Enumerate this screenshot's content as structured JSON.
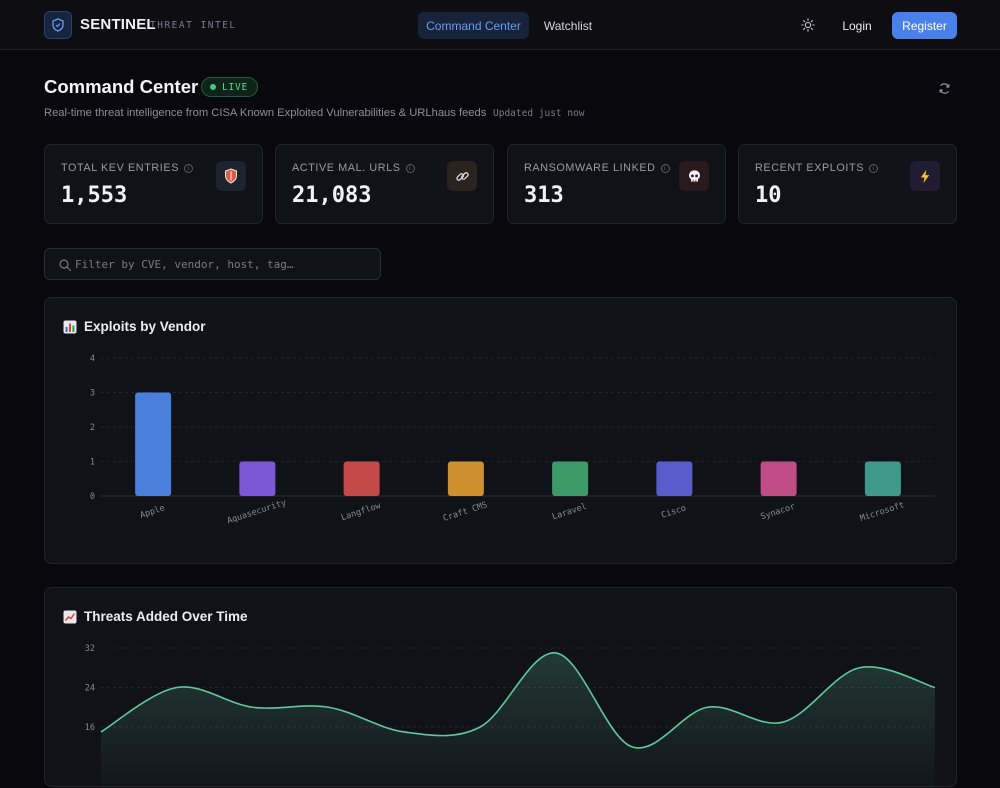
{
  "brand": {
    "name": "SENTINEL",
    "tagline": "THREAT INTEL",
    "accent": "#4a80ea"
  },
  "nav": [
    {
      "label": "Command Center",
      "active": true
    },
    {
      "label": "Watchlist",
      "active": false
    }
  ],
  "auth": {
    "login": "Login",
    "register": "Register"
  },
  "header": {
    "title": "Command Center",
    "live_label": "LIVE",
    "subtitle": "Real-time threat intelligence from CISA Known Exploited Vulnerabilities & URLhaus feeds",
    "updated": "Updated just now"
  },
  "stats": [
    {
      "label": "TOTAL KEV ENTRIES",
      "value": "1,553",
      "icon": "shield-badge-icon",
      "icon_bg": "#1e2330"
    },
    {
      "label": "ACTIVE MAL. URLS",
      "value": "21,083",
      "icon": "link-icon",
      "icon_bg": "#2a2320"
    },
    {
      "label": "RANSOMWARE LINKED",
      "value": "313",
      "icon": "skull-icon",
      "icon_bg": "#2a1a20"
    },
    {
      "label": "RECENT EXPLOITS",
      "value": "10",
      "icon": "lightning-icon",
      "icon_bg": "#221c33"
    }
  ],
  "filter": {
    "placeholder": "Filter by CVE, vendor, host, tag…",
    "value": ""
  },
  "charts": {
    "vendor_title": "Exploits by Vendor",
    "time_title": "Threats Added Over Time"
  },
  "chart_data": [
    {
      "type": "bar",
      "title": "Exploits by Vendor",
      "categories": [
        "Apple",
        "Aquasecurity",
        "Langflow",
        "Craft CMS",
        "Laravel",
        "Cisco",
        "Synacor",
        "Microsoft"
      ],
      "values": [
        3,
        1,
        1,
        1,
        1,
        1,
        1,
        1
      ],
      "colors": [
        "#4a7fdc",
        "#7c58d6",
        "#c44a4a",
        "#cf902f",
        "#3f9a6a",
        "#5a5ccc",
        "#c04c86",
        "#3f9a8a"
      ],
      "ylim": [
        0,
        4
      ],
      "yticks": [
        0,
        1,
        2,
        3,
        4
      ],
      "grid": true
    },
    {
      "type": "area",
      "title": "Threats Added Over Time",
      "values": [
        15,
        24,
        20,
        20,
        15,
        16,
        31,
        12,
        20,
        17,
        28,
        24
      ],
      "color": "#5ec99a",
      "ylim": [
        8,
        32
      ],
      "yticks": [
        16,
        24,
        32
      ],
      "grid": true
    }
  ]
}
